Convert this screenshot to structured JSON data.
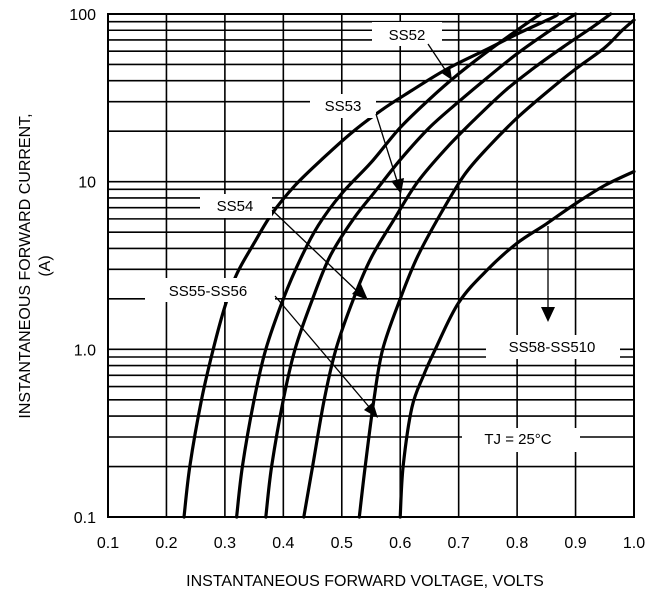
{
  "chart_data": {
    "type": "line",
    "xlabel": "INSTANTANEOUS FORWARD VOLTAGE, VOLTS",
    "ylabel_line1": "INSTANTANEOUS FORWARD CURRENT,",
    "ylabel_line2": "(A)",
    "x_ticks": [
      "0.1",
      "0.2",
      "0.3",
      "0.4",
      "0.5",
      "0.6",
      "0.7",
      "0.8",
      "0.9",
      "1.0"
    ],
    "y_ticks": [
      "0.1",
      "1.0",
      "10",
      "100"
    ],
    "xlim": [
      0.1,
      1.0
    ],
    "ylim": [
      0.1,
      100
    ],
    "y_scale": "log",
    "grid": true,
    "condition": "TJ = 25°C",
    "series": [
      {
        "name": "SS55-SS56",
        "points": [
          [
            0.32,
            0.1
          ],
          [
            0.33,
            0.2
          ],
          [
            0.35,
            0.5
          ],
          [
            0.37,
            1.0
          ],
          [
            0.4,
            2.0
          ],
          [
            0.43,
            3.5
          ],
          [
            0.46,
            5.5
          ],
          [
            0.5,
            8.5
          ],
          [
            0.55,
            13
          ],
          [
            0.6,
            21
          ],
          [
            0.65,
            31
          ],
          [
            0.7,
            44
          ],
          [
            0.75,
            60
          ],
          [
            0.8,
            80
          ],
          [
            0.84,
            100
          ]
        ]
      },
      {
        "name": "SS52",
        "points": [
          [
            0.37,
            0.1
          ],
          [
            0.38,
            0.2
          ],
          [
            0.4,
            0.5
          ],
          [
            0.42,
            1.0
          ],
          [
            0.45,
            2.0
          ],
          [
            0.48,
            3.6
          ],
          [
            0.52,
            6
          ],
          [
            0.56,
            9
          ],
          [
            0.6,
            13.5
          ],
          [
            0.65,
            21
          ],
          [
            0.7,
            30
          ],
          [
            0.75,
            42
          ],
          [
            0.8,
            58
          ],
          [
            0.85,
            77
          ],
          [
            0.89,
            95
          ],
          [
            0.9,
            100
          ]
        ]
      },
      {
        "name": "SS53",
        "points": [
          [
            0.435,
            0.1
          ],
          [
            0.45,
            0.2
          ],
          [
            0.47,
            0.5
          ],
          [
            0.49,
            1.0
          ],
          [
            0.52,
            2.0
          ],
          [
            0.55,
            3.5
          ],
          [
            0.59,
            6
          ],
          [
            0.63,
            10
          ],
          [
            0.68,
            16
          ],
          [
            0.73,
            24
          ],
          [
            0.78,
            35
          ],
          [
            0.83,
            48
          ],
          [
            0.88,
            64
          ],
          [
            0.93,
            84
          ],
          [
            0.96,
            100
          ]
        ]
      },
      {
        "name": "SS54",
        "points": [
          [
            0.53,
            0.1
          ],
          [
            0.54,
            0.2
          ],
          [
            0.555,
            0.5
          ],
          [
            0.57,
            1.0
          ],
          [
            0.6,
            2.0
          ],
          [
            0.63,
            3.6
          ],
          [
            0.67,
            6.5
          ],
          [
            0.71,
            11
          ],
          [
            0.75,
            16
          ],
          [
            0.8,
            24
          ],
          [
            0.85,
            34
          ],
          [
            0.9,
            47
          ],
          [
            0.95,
            63
          ],
          [
            0.98,
            80
          ],
          [
            1.0,
            92
          ]
        ]
      },
      {
        "name": "SS58-SS510",
        "points": [
          [
            0.6,
            0.1
          ],
          [
            0.605,
            0.2
          ],
          [
            0.62,
            0.45
          ],
          [
            0.64,
            0.7
          ],
          [
            0.66,
            1.0
          ],
          [
            0.7,
            1.9
          ],
          [
            0.75,
            3.0
          ],
          [
            0.8,
            4.3
          ],
          [
            0.85,
            5.6
          ],
          [
            0.9,
            7.4
          ],
          [
            0.95,
            9.5
          ],
          [
            1.0,
            11.5
          ]
        ]
      },
      {
        "name": "",
        "points": [
          [
            0.23,
            0.1
          ],
          [
            0.24,
            0.2
          ],
          [
            0.26,
            0.5
          ],
          [
            0.28,
            1.0
          ],
          [
            0.3,
            1.8
          ],
          [
            0.32,
            2.8
          ],
          [
            0.35,
            4.3
          ],
          [
            0.38,
            6.4
          ],
          [
            0.42,
            9.5
          ],
          [
            0.47,
            14
          ],
          [
            0.52,
            20
          ],
          [
            0.57,
            27
          ],
          [
            0.62,
            35
          ],
          [
            0.68,
            47
          ],
          [
            0.75,
            62
          ],
          [
            0.8,
            76
          ],
          [
            0.86,
            95
          ],
          [
            0.87,
            100
          ]
        ]
      }
    ],
    "labels": [
      "SS52",
      "SS53",
      "SS54",
      "SS55-SS56",
      "SS58-SS510"
    ]
  }
}
